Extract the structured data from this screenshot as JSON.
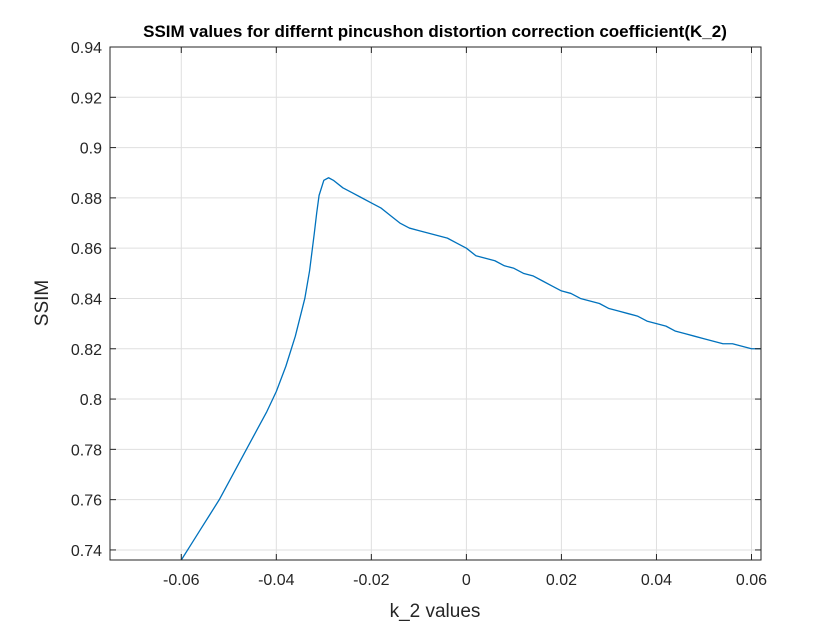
{
  "chart_data": {
    "type": "line",
    "title": "SSIM values for differnt pincushon distortion correction coefficient(K_2)",
    "xlabel": "k_2 values",
    "ylabel": "SSIM",
    "xlim": [
      -0.075,
      0.062
    ],
    "ylim": [
      0.736,
      0.94
    ],
    "grid": true,
    "x_ticks": [
      -0.06,
      -0.04,
      -0.02,
      0,
      0.02,
      0.04,
      0.06
    ],
    "x_tick_labels": [
      "-0.06",
      "-0.04",
      "-0.02",
      "0",
      "0.02",
      "0.04",
      "0.06"
    ],
    "y_ticks": [
      0.74,
      0.76,
      0.78,
      0.8,
      0.82,
      0.84,
      0.86,
      0.88,
      0.9,
      0.92,
      0.94
    ],
    "y_tick_labels": [
      "0.74",
      "0.76",
      "0.78",
      "0.8",
      "0.82",
      "0.84",
      "0.86",
      "0.88",
      "0.9",
      "0.92",
      "0.94"
    ],
    "series": [
      {
        "name": "SSIM",
        "color": "#0072bd",
        "x": [
          -0.06,
          -0.058,
          -0.056,
          -0.054,
          -0.052,
          -0.05,
          -0.048,
          -0.046,
          -0.044,
          -0.042,
          -0.04,
          -0.038,
          -0.036,
          -0.034,
          -0.033,
          -0.032,
          -0.0315,
          -0.031,
          -0.03,
          -0.029,
          -0.028,
          -0.026,
          -0.024,
          -0.022,
          -0.02,
          -0.018,
          -0.016,
          -0.014,
          -0.012,
          -0.01,
          -0.008,
          -0.006,
          -0.004,
          -0.002,
          0.0,
          0.002,
          0.004,
          0.006,
          0.008,
          0.01,
          0.012,
          0.014,
          0.016,
          0.018,
          0.02,
          0.022,
          0.024,
          0.026,
          0.028,
          0.03,
          0.032,
          0.034,
          0.036,
          0.038,
          0.04,
          0.042,
          0.044,
          0.046,
          0.048,
          0.05,
          0.052,
          0.054,
          0.056,
          0.058,
          0.06,
          0.062
        ],
        "values": [
          0.736,
          0.742,
          0.748,
          0.754,
          0.76,
          0.767,
          0.774,
          0.781,
          0.788,
          0.795,
          0.803,
          0.813,
          0.825,
          0.84,
          0.851,
          0.866,
          0.874,
          0.881,
          0.887,
          0.888,
          0.887,
          0.884,
          0.882,
          0.88,
          0.878,
          0.876,
          0.873,
          0.87,
          0.868,
          0.867,
          0.866,
          0.865,
          0.864,
          0.862,
          0.86,
          0.857,
          0.856,
          0.855,
          0.853,
          0.852,
          0.85,
          0.849,
          0.847,
          0.845,
          0.843,
          0.842,
          0.84,
          0.839,
          0.838,
          0.836,
          0.835,
          0.834,
          0.833,
          0.831,
          0.83,
          0.829,
          0.827,
          0.826,
          0.825,
          0.824,
          0.823,
          0.822,
          0.822,
          0.821,
          0.82,
          0.82
        ]
      }
    ]
  }
}
